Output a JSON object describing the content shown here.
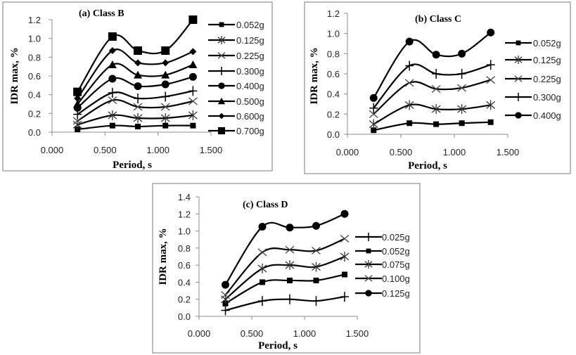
{
  "chart_data": [
    {
      "type": "line",
      "title": "(a) Class B",
      "xlabel": "Period, s",
      "ylabel": "IDR max, %",
      "xlim": [
        0,
        1.5
      ],
      "ylim": [
        0,
        1.2
      ],
      "xticks": [
        "0.000",
        "0.500",
        "1.000",
        "1.500"
      ],
      "yticks": [
        "0.0",
        "0.2",
        "0.4",
        "0.6",
        "0.8",
        "1.0",
        "1.2"
      ],
      "legend_position": "right",
      "smooth": true,
      "x": [
        0.24,
        0.57,
        0.81,
        1.07,
        1.33
      ],
      "series": [
        {
          "name": "0.052g",
          "marker": "square-small",
          "values": [
            0.03,
            0.07,
            0.06,
            0.07,
            0.07
          ]
        },
        {
          "name": "0.125g",
          "marker": "star",
          "values": [
            0.08,
            0.18,
            0.15,
            0.15,
            0.18
          ]
        },
        {
          "name": "0.225g",
          "marker": "x",
          "values": [
            0.12,
            0.34,
            0.27,
            0.27,
            0.33
          ]
        },
        {
          "name": "0.300g",
          "marker": "plus",
          "values": [
            0.19,
            0.42,
            0.36,
            0.38,
            0.44
          ]
        },
        {
          "name": "0.400g",
          "marker": "circle",
          "values": [
            0.26,
            0.57,
            0.49,
            0.51,
            0.59
          ]
        },
        {
          "name": "0.500g",
          "marker": "triangle",
          "values": [
            0.3,
            0.72,
            0.61,
            0.61,
            0.72
          ]
        },
        {
          "name": "0.600g",
          "marker": "diamond",
          "values": [
            0.36,
            0.87,
            0.74,
            0.74,
            0.86
          ]
        },
        {
          "name": "0.700g",
          "marker": "square-large",
          "values": [
            0.43,
            1.02,
            0.87,
            0.87,
            1.2
          ]
        }
      ]
    },
    {
      "type": "line",
      "title": "(b) Class C",
      "xlabel": "Period, s",
      "ylabel": "IDR max, %",
      "xlim": [
        0,
        1.5
      ],
      "ylim": [
        0,
        1.2
      ],
      "xticks": [
        "0.000",
        "0.500",
        "1.000",
        "1.500"
      ],
      "yticks": [
        "0.0",
        "0.2",
        "0.4",
        "0.6",
        "0.8",
        "1.0",
        "1.2"
      ],
      "legend_position": "right",
      "smooth": true,
      "x": [
        0.245,
        0.58,
        0.83,
        1.07,
        1.34
      ],
      "series": [
        {
          "name": "0.052g",
          "marker": "square-small",
          "values": [
            0.04,
            0.11,
            0.1,
            0.11,
            0.12
          ]
        },
        {
          "name": "0.125g",
          "marker": "star",
          "values": [
            0.1,
            0.29,
            0.25,
            0.25,
            0.29
          ]
        },
        {
          "name": "0.225g",
          "marker": "x",
          "values": [
            0.2,
            0.51,
            0.45,
            0.46,
            0.54
          ]
        },
        {
          "name": "0.300g",
          "marker": "plus",
          "values": [
            0.26,
            0.68,
            0.6,
            0.6,
            0.69
          ]
        },
        {
          "name": "0.400g",
          "marker": "circle",
          "values": [
            0.36,
            0.92,
            0.79,
            0.8,
            1.01
          ]
        }
      ]
    },
    {
      "type": "line",
      "title": "(c) Class D",
      "xlabel": "Period, s",
      "ylabel": "IDR max, %",
      "xlim": [
        0,
        1.5
      ],
      "ylim": [
        0,
        1.4
      ],
      "xticks": [
        "0.000",
        "0.500",
        "1.000",
        "1.500"
      ],
      "yticks": [
        "0.0",
        "0.2",
        "0.4",
        "0.6",
        "0.8",
        "1.0",
        "1.2",
        "1.4"
      ],
      "legend_position": "right",
      "smooth": true,
      "x": [
        0.25,
        0.6,
        0.86,
        1.11,
        1.38
      ],
      "series": [
        {
          "name": "0.025g",
          "marker": "plus",
          "values": [
            0.07,
            0.18,
            0.2,
            0.18,
            0.23
          ]
        },
        {
          "name": "0.052g",
          "marker": "square-small",
          "values": [
            0.15,
            0.4,
            0.42,
            0.42,
            0.49
          ]
        },
        {
          "name": "0.075g",
          "marker": "star",
          "values": [
            0.2,
            0.56,
            0.6,
            0.58,
            0.7
          ]
        },
        {
          "name": "0.100g",
          "marker": "x",
          "values": [
            0.25,
            0.75,
            0.78,
            0.77,
            0.91
          ]
        },
        {
          "name": "0.125g",
          "marker": "circle",
          "values": [
            0.37,
            1.05,
            1.04,
            1.06,
            1.2
          ]
        }
      ]
    }
  ]
}
